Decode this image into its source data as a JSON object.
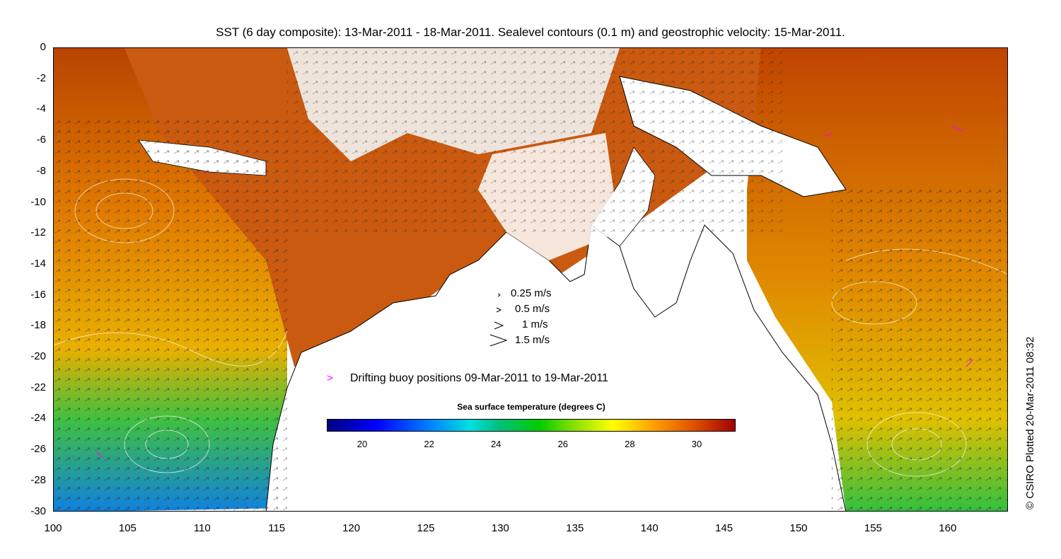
{
  "title": "SST (6 day composite): 13-Mar-2011 - 18-Mar-2011. Sealevel contours (0.1 m) and geostrophic velocity: 15-Mar-2011.",
  "y_axis_ticks": [
    "0",
    "-2",
    "-4",
    "-6",
    "-8",
    "-10",
    "-12",
    "-14",
    "-16",
    "-18",
    "-20",
    "-22",
    "-24",
    "-26",
    "-28",
    "-30"
  ],
  "x_axis_ticks": [
    "100",
    "105",
    "110",
    "115",
    "120",
    "125",
    "130",
    "135",
    "140",
    "145",
    "150",
    "155",
    "160"
  ],
  "velocity_legend": [
    "0.25 m/s",
    "0.5 m/s",
    "1 m/s",
    "1.5 m/s"
  ],
  "buoy_legend": {
    "symbol": ">",
    "label": "Drifting buoy positions 09-Mar-2011 to 19-Mar-2011",
    "color": "#ff00ff"
  },
  "colorbar": {
    "title": "Sea surface temperature (degrees C)",
    "ticks": [
      "20",
      "22",
      "24",
      "26",
      "28",
      "30"
    ]
  },
  "credit": "© CSIRO Plotted 20-Mar-2011 08:32",
  "colors": {
    "land": "#ffffff",
    "warm_sst": "#c84a00",
    "mid_sst": "#f0a000",
    "cool_sst": "#30c030"
  }
}
